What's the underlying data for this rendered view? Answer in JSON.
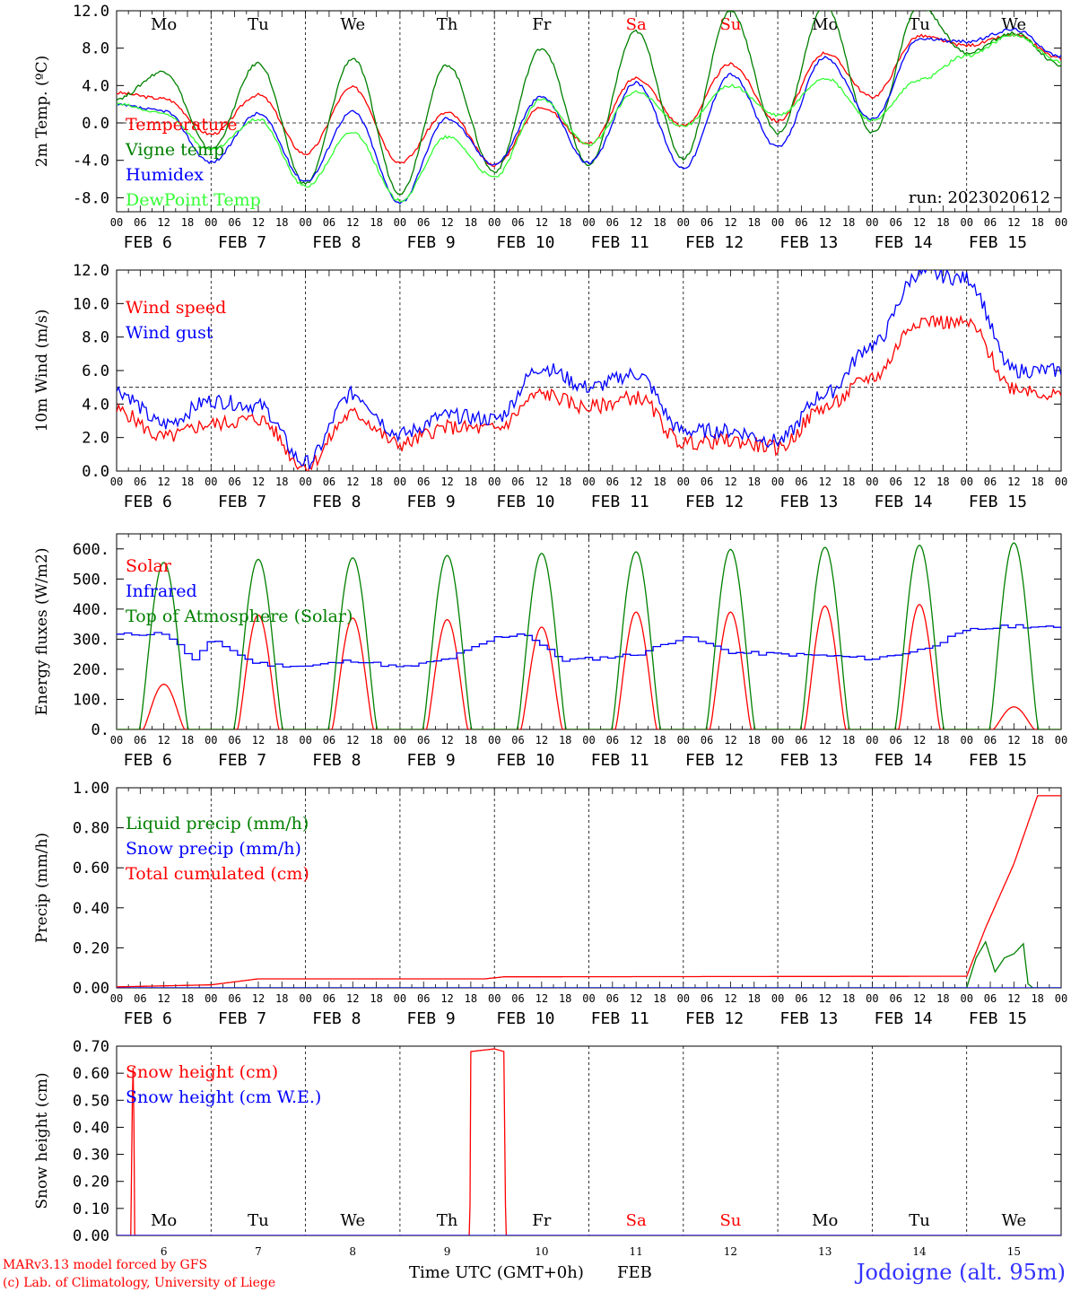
{
  "page": {
    "credit_line1": "MARv3.13 model forced by GFS",
    "credit_line2": "(c) Lab. of Climatology, University of Liege",
    "x_axis_title": "Time UTC (GMT+0h)",
    "x_axis_month": "FEB",
    "station": "Jodoigne (alt. 95m)",
    "run_label": "run: 2023020612",
    "hour_ticks": [
      "00",
      "06",
      "12",
      "18"
    ],
    "day_labels": [
      "FEB  6",
      "FEB  7",
      "FEB  8",
      "FEB  9",
      "FEB 10",
      "FEB 11",
      "FEB 12",
      "FEB 13",
      "FEB 14",
      "FEB 15"
    ],
    "day_numbers": [
      "6",
      "7",
      "8",
      "9",
      "10",
      "11",
      "12",
      "13",
      "14",
      "15"
    ],
    "weekdays": [
      "Mo",
      "Tu",
      "We",
      "Th",
      "Fr",
      "Sa",
      "Su",
      "Mo",
      "Tu",
      "We"
    ],
    "weekday_colors": [
      "#000000",
      "#000000",
      "#000000",
      "#000000",
      "#000000",
      "#ff0000",
      "#ff0000",
      "#000000",
      "#000000",
      "#000000"
    ]
  },
  "chart_data": [
    {
      "type": "line",
      "ylabel": "2m Temp. (ºC)",
      "ylim": [
        -9.5,
        12
      ],
      "yticks": [
        "12.0",
        "8.0",
        "4.0",
        "0.0",
        "-4.0",
        "-8.0"
      ],
      "ytick_values": [
        12,
        8,
        4,
        0,
        -4,
        -8
      ],
      "hline": 0,
      "x_days": [
        0,
        0.5,
        1,
        1.5,
        2,
        2.5,
        3,
        3.5,
        4,
        4.5,
        5,
        5.5,
        6,
        6.5,
        7,
        7.5,
        8,
        8.5,
        9,
        9.5,
        10
      ],
      "series": [
        {
          "name": "Temperature",
          "color": "#ff0000",
          "values": [
            3.2,
            2.6,
            -1.2,
            3.0,
            -3.3,
            3.8,
            -4.2,
            1.1,
            -4.5,
            1.7,
            -2.2,
            4.8,
            -0.3,
            6.3,
            0.2,
            7.5,
            2.8,
            9.3,
            8.3,
            9.4,
            6.9
          ]
        },
        {
          "name": "Vigne temp",
          "color": "#008000",
          "values": [
            2.6,
            5.5,
            -2.8,
            6.4,
            -6.5,
            6.9,
            -7.5,
            6.2,
            -5.2,
            8.0,
            -4.5,
            9.8,
            -3.8,
            12.0,
            -1.1,
            12.5,
            -1.1,
            12.5,
            7.5,
            9.6,
            6.2
          ]
        },
        {
          "name": "Humidex",
          "color": "#0000ff",
          "values": [
            1.9,
            1.3,
            -4.2,
            1.0,
            -6.2,
            1.2,
            -8.5,
            0.5,
            -4.4,
            2.8,
            -4.3,
            4.3,
            -4.8,
            5.2,
            -2.6,
            7.0,
            0.4,
            9.0,
            8.7,
            10.0,
            7.1
          ]
        },
        {
          "name": "DewPoint Temp",
          "color": "#33ff33",
          "values": [
            2.0,
            1.0,
            -2.9,
            0.4,
            -6.8,
            -1.0,
            -8.3,
            -1.5,
            -5.8,
            2.5,
            -2.3,
            3.3,
            -0.3,
            4.0,
            0.8,
            4.8,
            0.3,
            4.6,
            7.2,
            9.4,
            6.5
          ]
        }
      ]
    },
    {
      "type": "line",
      "ylabel": "10m Wind (m/s)",
      "ylim": [
        0,
        12
      ],
      "yticks": [
        "12.0",
        "10.0",
        "8.0",
        "6.0",
        "4.0",
        "2.0",
        "0.0"
      ],
      "ytick_values": [
        12,
        10,
        8,
        6,
        4,
        2,
        0
      ],
      "hline": 5,
      "x_days": [
        0,
        0.5,
        1,
        1.5,
        2,
        2.5,
        3,
        3.5,
        4,
        4.5,
        5,
        5.5,
        6,
        6.5,
        7,
        7.5,
        8,
        8.5,
        9,
        9.5,
        10
      ],
      "series": [
        {
          "name": "Wind speed",
          "color": "#ff0000",
          "values": [
            3.6,
            2.0,
            2.8,
            3.1,
            0.3,
            3.4,
            1.6,
            2.6,
            2.5,
            4.6,
            3.8,
            4.4,
            1.7,
            1.8,
            1.4,
            3.8,
            5.6,
            9.0,
            8.8,
            5.0,
            4.5
          ]
        },
        {
          "name": "Wind gust",
          "color": "#0000ff",
          "values": [
            4.8,
            2.8,
            4.2,
            3.9,
            0.5,
            4.6,
            2.2,
            3.3,
            3.1,
            6.2,
            5.0,
            5.8,
            2.4,
            2.4,
            1.8,
            4.6,
            7.5,
            11.8,
            11.5,
            6.0,
            6.0
          ]
        }
      ]
    },
    {
      "type": "line",
      "ylabel": "Energy fluxes (W/m2)",
      "ylim": [
        0,
        650
      ],
      "yticks": [
        "600.",
        "500.",
        "400.",
        "300.",
        "200.",
        "100.",
        "0."
      ],
      "ytick_values": [
        600,
        500,
        400,
        300,
        200,
        100,
        0
      ],
      "series": [
        {
          "name": "Solar",
          "color": "#ff0000",
          "daily_peaks": [
            150,
            380,
            370,
            365,
            340,
            390,
            390,
            410,
            415,
            75
          ]
        },
        {
          "name": "Infrared",
          "color": "#0000ff",
          "x_days": [
            0,
            0.5,
            0.8,
            1,
            1.4,
            1.6,
            2,
            2.5,
            3,
            3.5,
            4,
            4.3,
            4.7,
            5,
            5.5,
            6,
            6.5,
            7,
            7.5,
            8,
            8.5,
            9,
            9.5,
            10
          ],
          "values": [
            315,
            320,
            230,
            300,
            225,
            215,
            210,
            230,
            205,
            235,
            305,
            320,
            230,
            235,
            250,
            310,
            255,
            250,
            245,
            235,
            265,
            330,
            345,
            335
          ]
        },
        {
          "name": "Top of Atmosphere (Solar)",
          "color": "#008000",
          "daily_peaks": [
            555,
            565,
            570,
            578,
            585,
            590,
            598,
            605,
            612,
            620
          ]
        }
      ]
    },
    {
      "type": "line",
      "ylabel": "Precip (mm/h)",
      "ylim": [
        0,
        1
      ],
      "yticks": [
        "1.00",
        "0.80",
        "0.60",
        "0.40",
        "0.20",
        "0.00"
      ],
      "ytick_values": [
        1,
        0.8,
        0.6,
        0.4,
        0.2,
        0
      ],
      "series": [
        {
          "name": "Liquid precip (mm/h)",
          "color": "#008000",
          "x_days": [
            0,
            9.0,
            9.1,
            9.2,
            9.3,
            9.4,
            9.5,
            9.6,
            9.65,
            9.7,
            10
          ],
          "values": [
            0,
            0,
            0.15,
            0.23,
            0.08,
            0.15,
            0.17,
            0.22,
            0.02,
            0,
            0
          ]
        },
        {
          "name": "Snow precip (mm/h)",
          "color": "#0000ff",
          "x_days": [
            0,
            10
          ],
          "values": [
            0,
            0
          ]
        },
        {
          "name": "Total cumulated (cm)",
          "color": "#ff0000",
          "x_days": [
            0,
            1.0,
            1.5,
            3.9,
            4.1,
            9.0,
            9.2,
            9.5,
            9.75,
            10
          ],
          "values": [
            0.005,
            0.015,
            0.045,
            0.045,
            0.055,
            0.058,
            0.3,
            0.62,
            0.96,
            0.96
          ]
        }
      ]
    },
    {
      "type": "line",
      "ylabel": "Snow height (cm)",
      "ylim": [
        0,
        0.7
      ],
      "yticks": [
        "0.70",
        "0.60",
        "0.50",
        "0.40",
        "0.30",
        "0.20",
        "0.10",
        "0.00"
      ],
      "ytick_values": [
        0.7,
        0.6,
        0.5,
        0.4,
        0.3,
        0.2,
        0.1,
        0
      ],
      "series": [
        {
          "name": "Snow height (cm)",
          "color": "#ff0000",
          "x_days": [
            0,
            0.15,
            0.17,
            0.18,
            0.19,
            0.2,
            3.74,
            3.75,
            4.0,
            4.1,
            4.12,
            4.13,
            10
          ],
          "values": [
            0,
            0,
            0.62,
            0.62,
            0,
            0,
            0,
            0.68,
            0.69,
            0.68,
            0,
            0,
            0
          ]
        },
        {
          "name": "Snow height (cm W.E.)",
          "color": "#0000ff",
          "x_days": [
            0,
            10
          ],
          "values": [
            0,
            0
          ]
        }
      ]
    }
  ]
}
